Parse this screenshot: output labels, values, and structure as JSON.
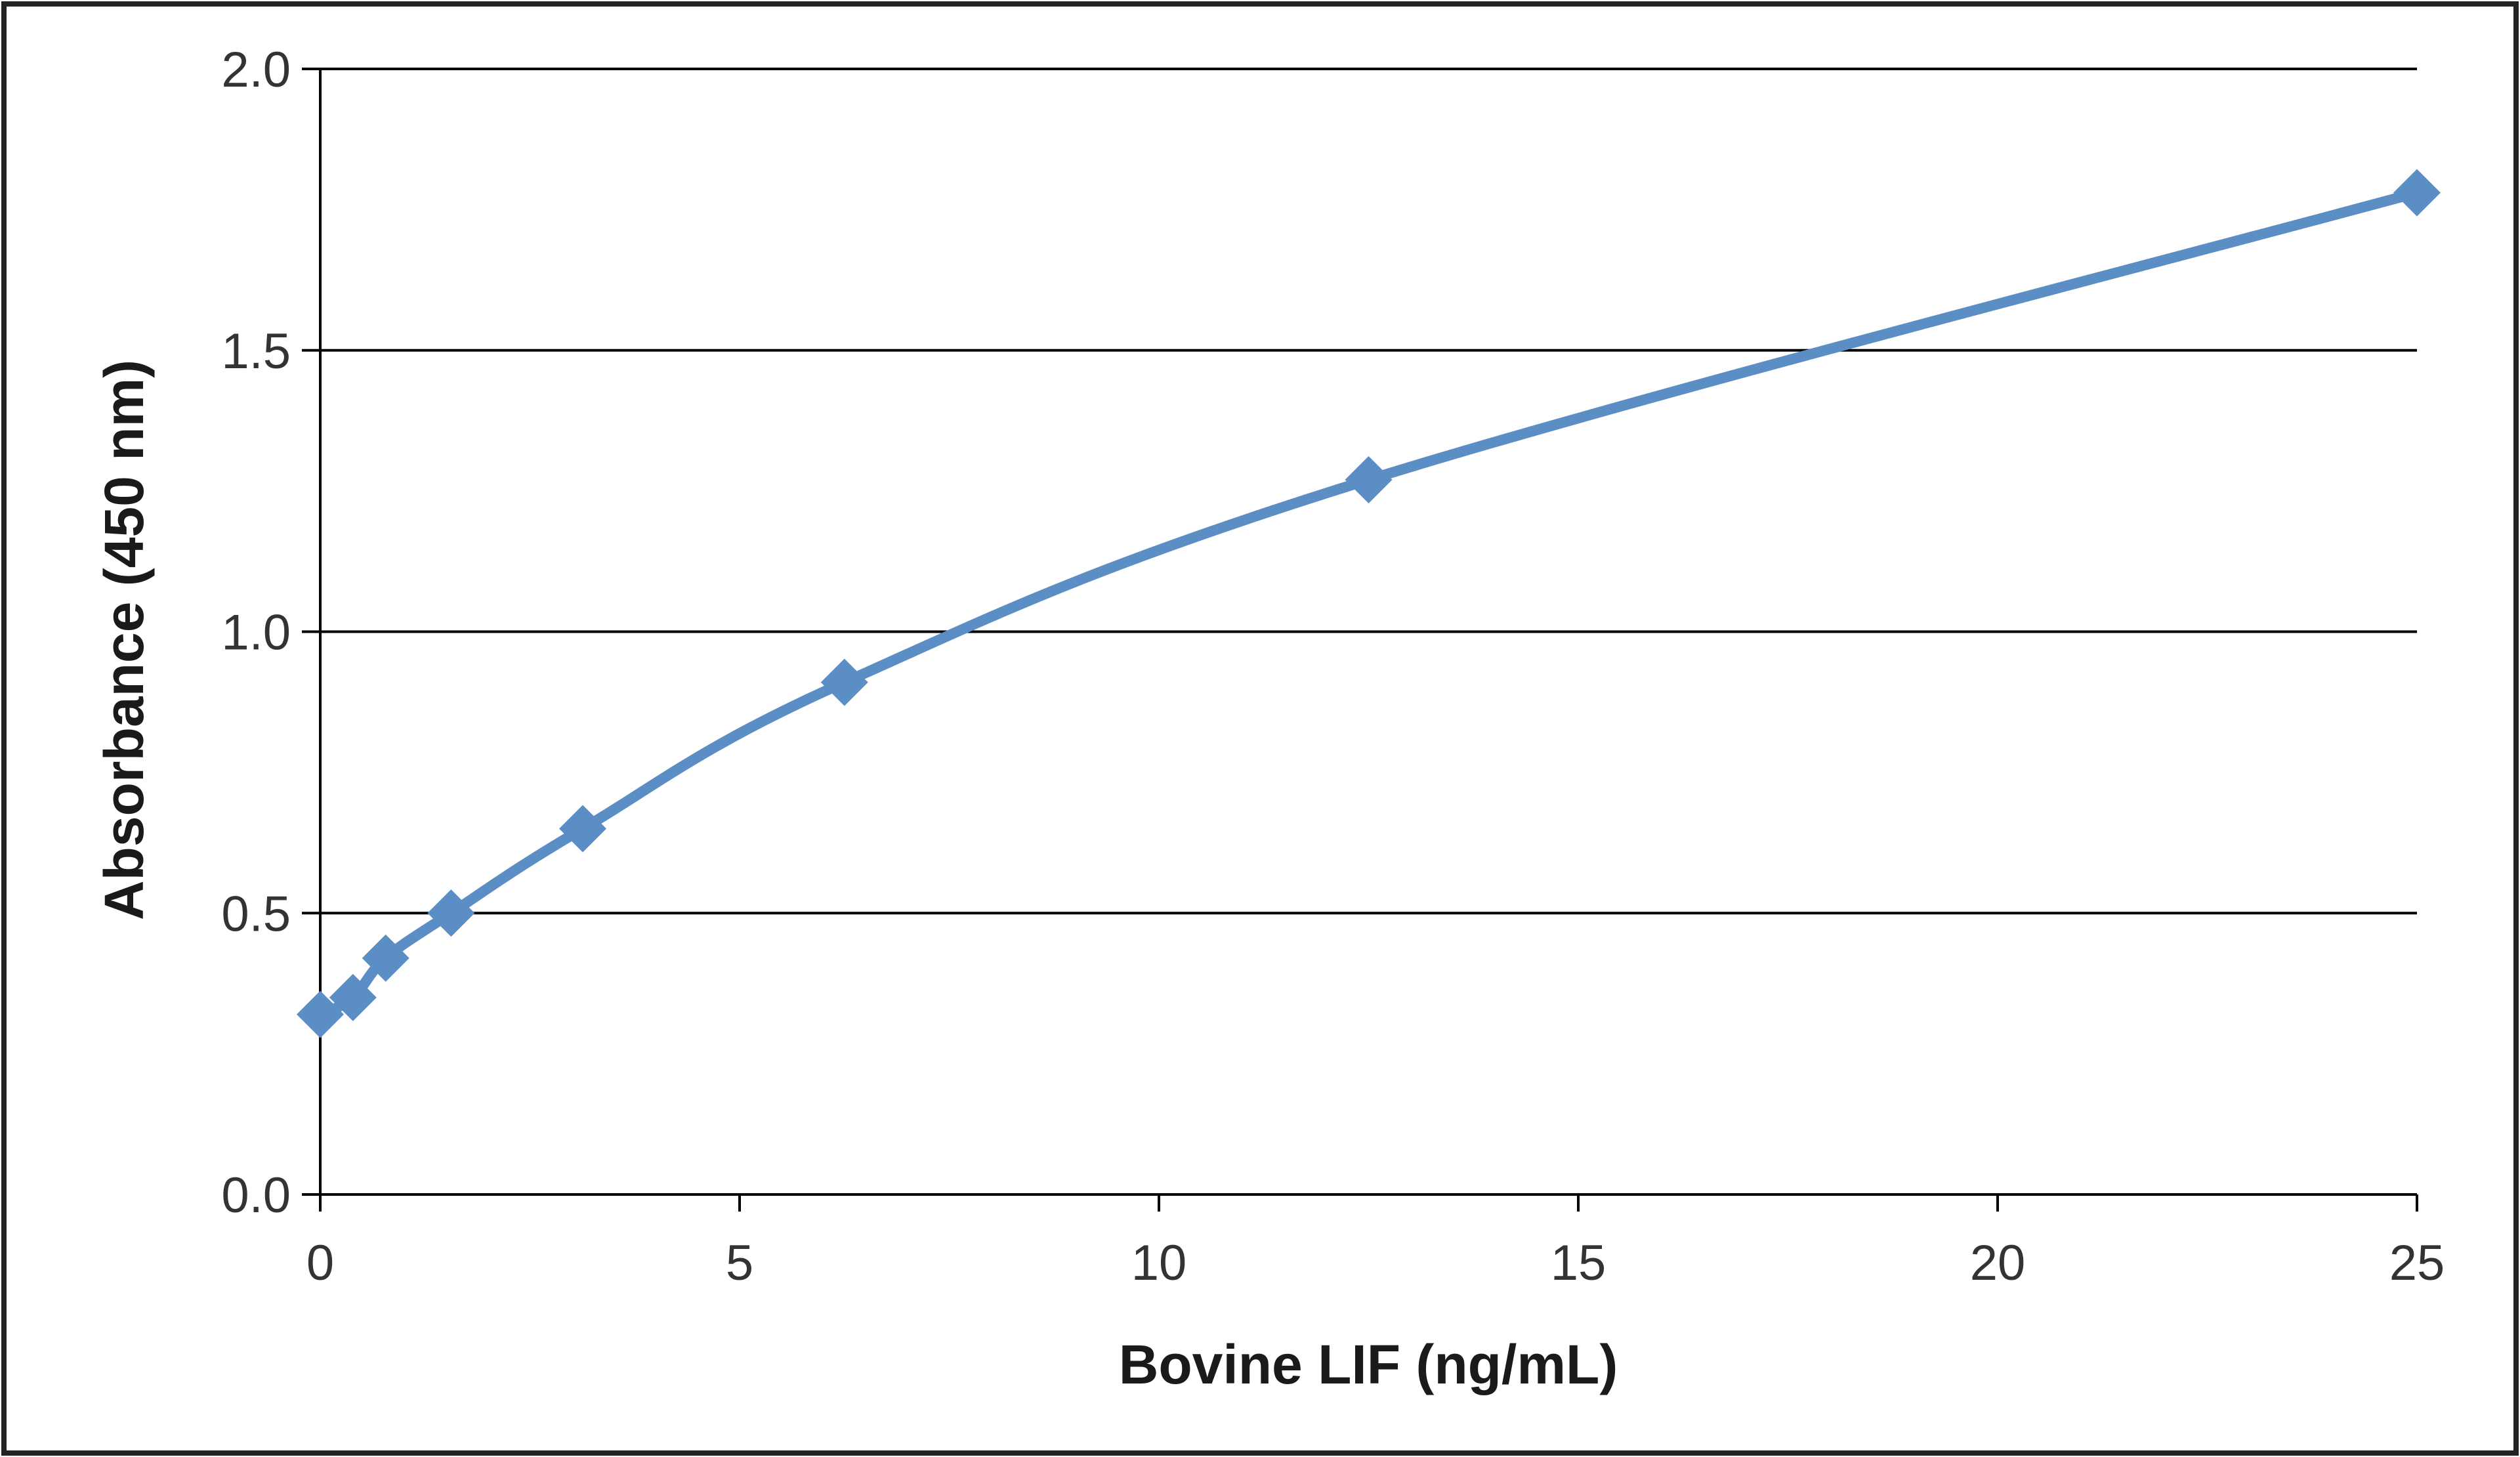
{
  "chart_data": {
    "type": "line",
    "title": "",
    "xlabel": "Bovine LIF (ng/mL)",
    "ylabel": "Absorbance  (450 nm)",
    "xlim": [
      0,
      25
    ],
    "ylim": [
      0,
      2.0
    ],
    "x_ticks": [
      "0",
      "5",
      "10",
      "15",
      "20",
      "25"
    ],
    "y_ticks": [
      "0.0",
      "0.5",
      "1.0",
      "1.5",
      "2.0"
    ],
    "grid": "horizontal major gridlines",
    "legend": "none",
    "marker": "diamond",
    "line_style": "smoothed",
    "series": [
      {
        "color": "#5b8ec4",
        "x": [
          0,
          0.39,
          0.78,
          1.56,
          3.13,
          6.25,
          12.5,
          25
        ],
        "y": [
          0.32,
          0.35,
          0.42,
          0.5,
          0.65,
          0.91,
          1.27,
          1.78
        ]
      }
    ]
  }
}
